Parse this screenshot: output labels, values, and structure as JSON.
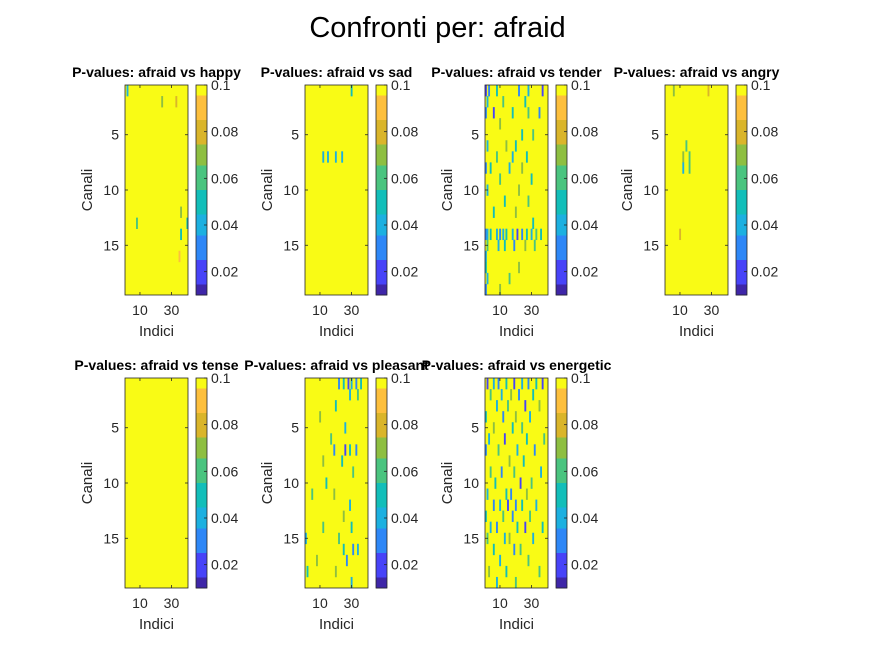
{
  "figure": {
    "suptitle": "Confronti per: afraid"
  },
  "colormap": [
    "#3e26a8",
    "#4743f8",
    "#2e87f7",
    "#1cb0e0",
    "#12beb9",
    "#4ac47f",
    "#8ebf41",
    "#dab52a",
    "#fdbf3d",
    "#f9fb15"
  ],
  "chart_data": [
    {
      "type": "heatmap",
      "title": "P-values: afraid vs happy",
      "xlabel": "Indici",
      "ylabel": "Canali",
      "x_range": [
        1,
        40
      ],
      "y_range": [
        1,
        19
      ],
      "xticks": [
        10,
        30
      ],
      "yticks": [
        5,
        10,
        15
      ],
      "colorbar": {
        "ticks": [
          0.02,
          0.04,
          0.06,
          0.08,
          0.1
        ],
        "range": [
          0.01,
          0.1
        ]
      },
      "baseline_value": 0.1,
      "cells": [
        [
          1,
          2,
          0.04
        ],
        [
          2,
          24,
          0.07
        ],
        [
          2,
          33,
          0.08
        ],
        [
          13,
          8,
          0.06
        ],
        [
          12,
          36,
          0.07
        ],
        [
          13,
          40,
          0.05
        ],
        [
          14,
          36,
          0.05
        ],
        [
          16,
          35,
          0.09
        ]
      ]
    },
    {
      "type": "heatmap",
      "title": "P-values: afraid vs sad",
      "xlabel": "Indici",
      "ylabel": "Canali",
      "x_range": [
        1,
        40
      ],
      "y_range": [
        1,
        19
      ],
      "xticks": [
        10,
        30
      ],
      "yticks": [
        5,
        10,
        15
      ],
      "colorbar": {
        "ticks": [
          0.02,
          0.04,
          0.06,
          0.08,
          0.1
        ],
        "range": [
          0.01,
          0.1
        ]
      },
      "baseline_value": 0.1,
      "cells": [
        [
          1,
          30,
          0.05
        ],
        [
          7,
          12,
          0.04
        ],
        [
          7,
          15,
          0.04
        ],
        [
          7,
          20,
          0.04
        ],
        [
          7,
          24,
          0.04
        ]
      ]
    },
    {
      "type": "heatmap",
      "title": "P-values: afraid vs tender",
      "xlabel": "Indici",
      "ylabel": "Canali",
      "x_range": [
        1,
        40
      ],
      "y_range": [
        1,
        19
      ],
      "xticks": [
        10,
        30
      ],
      "yticks": [
        5,
        10,
        15
      ],
      "colorbar": {
        "ticks": [
          0.02,
          0.04,
          0.06,
          0.08,
          0.1
        ],
        "range": [
          0.01,
          0.1
        ]
      },
      "baseline_value": 0.1,
      "cells": [
        [
          1,
          1,
          0.02
        ],
        [
          1,
          3,
          0.03
        ],
        [
          1,
          8,
          0.05
        ],
        [
          1,
          22,
          0.03
        ],
        [
          1,
          28,
          0.04
        ],
        [
          1,
          37,
          0.02
        ],
        [
          2,
          2,
          0.04
        ],
        [
          2,
          12,
          0.06
        ],
        [
          2,
          26,
          0.05
        ],
        [
          3,
          1,
          0.03
        ],
        [
          3,
          6,
          0.02
        ],
        [
          3,
          18,
          0.05
        ],
        [
          3,
          28,
          0.06
        ],
        [
          3,
          35,
          0.03
        ],
        [
          4,
          10,
          0.07
        ],
        [
          5,
          24,
          0.05
        ],
        [
          5,
          31,
          0.06
        ],
        [
          6,
          2,
          0.04
        ],
        [
          6,
          14,
          0.07
        ],
        [
          6,
          20,
          0.05
        ],
        [
          7,
          8,
          0.06
        ],
        [
          7,
          18,
          0.04
        ],
        [
          7,
          27,
          0.05
        ],
        [
          8,
          1,
          0.03
        ],
        [
          8,
          4,
          0.05
        ],
        [
          8,
          16,
          0.04
        ],
        [
          8,
          24,
          0.07
        ],
        [
          9,
          10,
          0.06
        ],
        [
          9,
          30,
          0.05
        ],
        [
          10,
          2,
          0.04
        ],
        [
          10,
          22,
          0.07
        ],
        [
          11,
          13,
          0.05
        ],
        [
          11,
          28,
          0.06
        ],
        [
          12,
          6,
          0.05
        ],
        [
          12,
          20,
          0.07
        ],
        [
          13,
          31,
          0.05
        ],
        [
          14,
          1,
          0.03
        ],
        [
          14,
          2,
          0.04
        ],
        [
          14,
          4,
          0.05
        ],
        [
          14,
          8,
          0.04
        ],
        [
          14,
          10,
          0.03
        ],
        [
          14,
          12,
          0.04
        ],
        [
          14,
          14,
          0.05
        ],
        [
          14,
          18,
          0.04
        ],
        [
          14,
          21,
          0.02
        ],
        [
          14,
          24,
          0.03
        ],
        [
          14,
          27,
          0.05
        ],
        [
          14,
          30,
          0.04
        ],
        [
          14,
          33,
          0.06
        ],
        [
          14,
          36,
          0.05
        ],
        [
          15,
          2,
          0.06
        ],
        [
          15,
          9,
          0.04
        ],
        [
          15,
          13,
          0.05
        ],
        [
          15,
          19,
          0.03
        ],
        [
          15,
          26,
          0.07
        ],
        [
          15,
          32,
          0.06
        ],
        [
          16,
          1,
          0.04
        ],
        [
          17,
          1,
          0.05
        ],
        [
          17,
          22,
          0.07
        ],
        [
          18,
          2,
          0.04
        ],
        [
          18,
          16,
          0.06
        ],
        [
          19,
          1,
          0.03
        ],
        [
          19,
          10,
          0.07
        ]
      ]
    },
    {
      "type": "heatmap",
      "title": "P-values: afraid vs angry",
      "xlabel": "Indici",
      "ylabel": "Canali",
      "x_range": [
        1,
        40
      ],
      "y_range": [
        1,
        19
      ],
      "xticks": [
        10,
        30
      ],
      "yticks": [
        5,
        10,
        15
      ],
      "colorbar": {
        "ticks": [
          0.02,
          0.04,
          0.06,
          0.08,
          0.1
        ],
        "range": [
          0.01,
          0.1
        ]
      },
      "baseline_value": 0.1,
      "cells": [
        [
          1,
          6,
          0.07
        ],
        [
          1,
          28,
          0.08
        ],
        [
          6,
          14,
          0.06
        ],
        [
          7,
          12,
          0.07
        ],
        [
          7,
          16,
          0.06
        ],
        [
          8,
          12,
          0.04
        ],
        [
          8,
          16,
          0.06
        ],
        [
          14,
          10,
          0.08
        ]
      ]
    },
    {
      "type": "heatmap",
      "title": "P-values: afraid vs tense",
      "xlabel": "Indici",
      "ylabel": "Canali",
      "x_range": [
        1,
        40
      ],
      "y_range": [
        1,
        19
      ],
      "xticks": [
        10,
        30
      ],
      "yticks": [
        5,
        10,
        15
      ],
      "colorbar": {
        "ticks": [
          0.02,
          0.04,
          0.06,
          0.08,
          0.1
        ],
        "range": [
          0.01,
          0.1
        ]
      },
      "baseline_value": 0.1,
      "cells": []
    },
    {
      "type": "heatmap",
      "title": "P-values: afraid vs pleasant",
      "xlabel": "Indici",
      "ylabel": "Canali",
      "x_range": [
        1,
        40
      ],
      "y_range": [
        1,
        19
      ],
      "xticks": [
        10,
        30
      ],
      "yticks": [
        5,
        10,
        15
      ],
      "colorbar": {
        "ticks": [
          0.02,
          0.04,
          0.06,
          0.08,
          0.1
        ],
        "range": [
          0.01,
          0.1
        ]
      },
      "baseline_value": 0.1,
      "cells": [
        [
          1,
          22,
          0.03
        ],
        [
          1,
          25,
          0.05
        ],
        [
          1,
          28,
          0.02
        ],
        [
          1,
          30,
          0.04
        ],
        [
          1,
          33,
          0.03
        ],
        [
          1,
          36,
          0.05
        ],
        [
          2,
          29,
          0.04
        ],
        [
          2,
          34,
          0.06
        ],
        [
          3,
          20,
          0.05
        ],
        [
          4,
          10,
          0.07
        ],
        [
          5,
          26,
          0.04
        ],
        [
          6,
          17,
          0.06
        ],
        [
          7,
          19,
          0.03
        ],
        [
          7,
          26,
          0.02
        ],
        [
          7,
          29,
          0.05
        ],
        [
          7,
          33,
          0.03
        ],
        [
          8,
          12,
          0.07
        ],
        [
          8,
          24,
          0.05
        ],
        [
          9,
          31,
          0.06
        ],
        [
          10,
          14,
          0.05
        ],
        [
          11,
          5,
          0.06
        ],
        [
          11,
          19,
          0.07
        ],
        [
          12,
          29,
          0.04
        ],
        [
          13,
          25,
          0.07
        ],
        [
          14,
          12,
          0.06
        ],
        [
          14,
          30,
          0.05
        ],
        [
          15,
          1,
          0.04
        ],
        [
          15,
          22,
          0.06
        ],
        [
          16,
          25,
          0.05
        ],
        [
          16,
          31,
          0.03
        ],
        [
          16,
          34,
          0.04
        ],
        [
          17,
          8,
          0.07
        ],
        [
          17,
          27,
          0.03
        ],
        [
          18,
          2,
          0.05
        ],
        [
          18,
          20,
          0.07
        ],
        [
          19,
          30,
          0.04
        ]
      ]
    },
    {
      "type": "heatmap",
      "title": "P-values: afraid vs energetic",
      "xlabel": "Indici",
      "ylabel": "Canali",
      "x_range": [
        1,
        40
      ],
      "y_range": [
        1,
        19
      ],
      "xticks": [
        10,
        30
      ],
      "yticks": [
        5,
        10,
        15
      ],
      "colorbar": {
        "ticks": [
          0.02,
          0.04,
          0.06,
          0.08,
          0.1
        ],
        "range": [
          0.01,
          0.1
        ]
      },
      "baseline_value": 0.1,
      "cells": [
        [
          1,
          2,
          0.02
        ],
        [
          1,
          6,
          0.04
        ],
        [
          1,
          9,
          0.03
        ],
        [
          1,
          14,
          0.05
        ],
        [
          1,
          19,
          0.02
        ],
        [
          1,
          24,
          0.04
        ],
        [
          1,
          28,
          0.03
        ],
        [
          1,
          33,
          0.05
        ],
        [
          1,
          37,
          0.02
        ],
        [
          2,
          4,
          0.06
        ],
        [
          2,
          11,
          0.04
        ],
        [
          2,
          17,
          0.07
        ],
        [
          2,
          22,
          0.03
        ],
        [
          2,
          31,
          0.05
        ],
        [
          3,
          8,
          0.04
        ],
        [
          3,
          15,
          0.06
        ],
        [
          3,
          26,
          0.02
        ],
        [
          3,
          35,
          0.07
        ],
        [
          4,
          1,
          0.05
        ],
        [
          4,
          12,
          0.03
        ],
        [
          4,
          20,
          0.07
        ],
        [
          4,
          29,
          0.04
        ],
        [
          5,
          6,
          0.07
        ],
        [
          5,
          18,
          0.05
        ],
        [
          5,
          24,
          0.06
        ],
        [
          6,
          3,
          0.04
        ],
        [
          6,
          13,
          0.02
        ],
        [
          6,
          27,
          0.05
        ],
        [
          6,
          38,
          0.06
        ],
        [
          7,
          1,
          0.03
        ],
        [
          7,
          9,
          0.06
        ],
        [
          7,
          21,
          0.04
        ],
        [
          7,
          32,
          0.03
        ],
        [
          8,
          16,
          0.07
        ],
        [
          8,
          25,
          0.05
        ],
        [
          9,
          4,
          0.06
        ],
        [
          9,
          11,
          0.03
        ],
        [
          9,
          19,
          0.06
        ],
        [
          9,
          36,
          0.04
        ],
        [
          10,
          7,
          0.05
        ],
        [
          10,
          23,
          0.02
        ],
        [
          10,
          30,
          0.06
        ],
        [
          11,
          2,
          0.04
        ],
        [
          11,
          14,
          0.05
        ],
        [
          11,
          17,
          0.03
        ],
        [
          11,
          27,
          0.07
        ],
        [
          12,
          6,
          0.03
        ],
        [
          12,
          10,
          0.04
        ],
        [
          12,
          15,
          0.02
        ],
        [
          12,
          20,
          0.03
        ],
        [
          12,
          24,
          0.05
        ],
        [
          12,
          33,
          0.04
        ],
        [
          13,
          1,
          0.05
        ],
        [
          13,
          12,
          0.06
        ],
        [
          13,
          18,
          0.03
        ],
        [
          13,
          29,
          0.06
        ],
        [
          14,
          4,
          0.04
        ],
        [
          14,
          8,
          0.03
        ],
        [
          14,
          21,
          0.05
        ],
        [
          14,
          26,
          0.02
        ],
        [
          14,
          37,
          0.05
        ],
        [
          15,
          2,
          0.06
        ],
        [
          15,
          13,
          0.04
        ],
        [
          15,
          16,
          0.07
        ],
        [
          15,
          31,
          0.04
        ],
        [
          16,
          6,
          0.05
        ],
        [
          16,
          19,
          0.03
        ],
        [
          16,
          23,
          0.06
        ],
        [
          17,
          10,
          0.04
        ],
        [
          17,
          28,
          0.06
        ],
        [
          18,
          3,
          0.07
        ],
        [
          18,
          14,
          0.05
        ],
        [
          18,
          35,
          0.06
        ],
        [
          19,
          8,
          0.04
        ],
        [
          19,
          20,
          0.06
        ]
      ]
    }
  ]
}
